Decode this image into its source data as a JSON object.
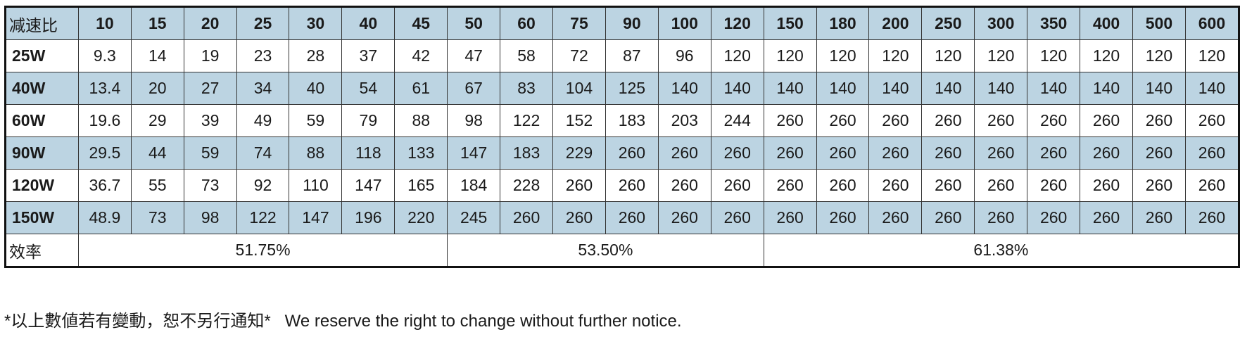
{
  "table": {
    "corner_label": "减速比",
    "ratios": [
      "10",
      "15",
      "20",
      "25",
      "30",
      "40",
      "45",
      "50",
      "60",
      "75",
      "90",
      "100",
      "120",
      "150",
      "180",
      "200",
      "250",
      "300",
      "350",
      "400",
      "500",
      "600"
    ],
    "rows": [
      {
        "label": "25W",
        "values": [
          "9.3",
          "14",
          "19",
          "23",
          "28",
          "37",
          "42",
          "47",
          "58",
          "72",
          "87",
          "96",
          "120",
          "120",
          "120",
          "120",
          "120",
          "120",
          "120",
          "120",
          "120",
          "120"
        ]
      },
      {
        "label": "40W",
        "values": [
          "13.4",
          "20",
          "27",
          "34",
          "40",
          "54",
          "61",
          "67",
          "83",
          "104",
          "125",
          "140",
          "140",
          "140",
          "140",
          "140",
          "140",
          "140",
          "140",
          "140",
          "140",
          "140"
        ]
      },
      {
        "label": "60W",
        "values": [
          "19.6",
          "29",
          "39",
          "49",
          "59",
          "79",
          "88",
          "98",
          "122",
          "152",
          "183",
          "203",
          "244",
          "260",
          "260",
          "260",
          "260",
          "260",
          "260",
          "260",
          "260",
          "260"
        ]
      },
      {
        "label": "90W",
        "values": [
          "29.5",
          "44",
          "59",
          "74",
          "88",
          "118",
          "133",
          "147",
          "183",
          "229",
          "260",
          "260",
          "260",
          "260",
          "260",
          "260",
          "260",
          "260",
          "260",
          "260",
          "260",
          "260"
        ]
      },
      {
        "label": "120W",
        "values": [
          "36.7",
          "55",
          "73",
          "92",
          "110",
          "147",
          "165",
          "184",
          "228",
          "260",
          "260",
          "260",
          "260",
          "260",
          "260",
          "260",
          "260",
          "260",
          "260",
          "260",
          "260",
          "260"
        ]
      },
      {
        "label": "150W",
        "values": [
          "48.9",
          "73",
          "98",
          "122",
          "147",
          "196",
          "220",
          "245",
          "260",
          "260",
          "260",
          "260",
          "260",
          "260",
          "260",
          "260",
          "260",
          "260",
          "260",
          "260",
          "260",
          "260"
        ]
      }
    ],
    "efficiency_label": "效率",
    "efficiency": [
      {
        "value": "51.75%",
        "span": 7
      },
      {
        "value": "53.50%",
        "span": 6
      },
      {
        "value": "61.38%",
        "span": 9
      }
    ]
  },
  "colors": {
    "stripe": "#bcd4e2",
    "border": "#111111"
  },
  "footnote": "*以上數値若有變動，恕不另行通知*   We reserve the right to change without further notice."
}
